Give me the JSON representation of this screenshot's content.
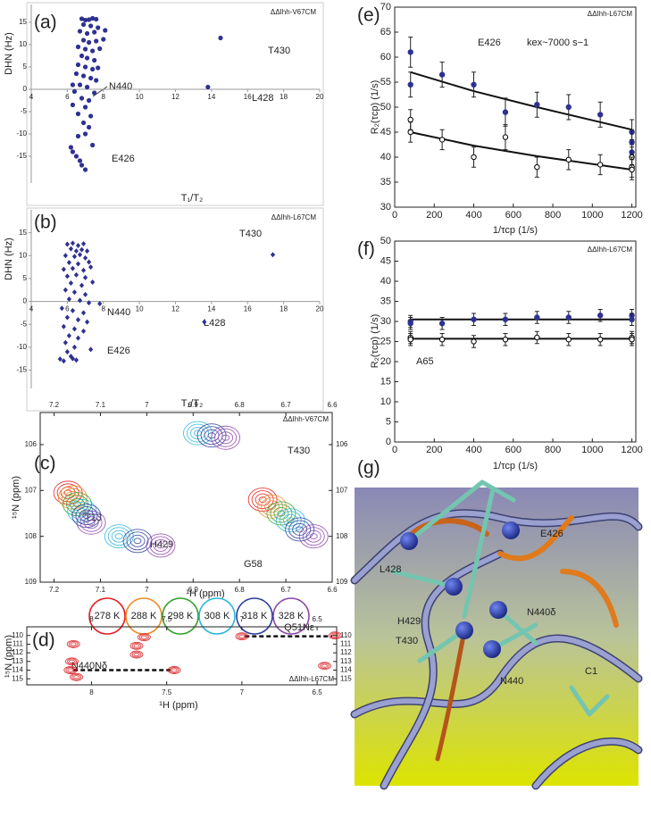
{
  "chart_data": [
    {
      "type": "scatter",
      "label": "(a)",
      "title": "ΔΔIhh-V67CM",
      "x_label": "T₁/T₂",
      "y_label": "DHN (Hz)",
      "marker": "circle",
      "color": "#2e3192",
      "annotations": [
        "T430",
        "L428",
        "N440",
        "E426"
      ],
      "xlim": [
        4,
        20
      ],
      "ylim": [
        -21,
        19
      ],
      "xticks": [
        4,
        6,
        8,
        10,
        12,
        14,
        16,
        18,
        20
      ],
      "yticks": [
        -15,
        -10,
        -5,
        0,
        5,
        10,
        15
      ],
      "x": [
        6.8,
        7.0,
        7.2,
        7.4,
        7.6,
        6.9,
        7.3,
        7.7,
        6.7,
        7.1,
        7.5,
        8.1,
        6.9,
        7.2,
        7.6,
        8.0,
        6.6,
        7.0,
        7.4,
        7.8,
        6.8,
        7.1,
        7.5,
        6.6,
        7.0,
        7.4,
        7.7,
        6.5,
        6.9,
        7.3,
        7.6,
        6.7,
        7.1,
        6.4,
        7.5,
        6.8,
        7.2,
        6.3,
        7.0,
        6.6,
        7.3,
        6.9,
        7.2,
        6.6,
        6.2,
        6.3,
        6.5,
        6.7,
        6.8,
        7.0,
        7.0,
        14.5,
        13.8,
        7.4,
        6.3
      ],
      "values": [
        15.8,
        15.5,
        15.6,
        15.9,
        15.7,
        14.5,
        14.2,
        13.8,
        13,
        12.5,
        12.8,
        13.2,
        11,
        10.5,
        10.8,
        11.2,
        9.5,
        9,
        8.6,
        9.1,
        7.5,
        7,
        6.5,
        5.5,
        5,
        4.5,
        4.8,
        3.5,
        3,
        2.5,
        2,
        1,
        0.5,
        -0.5,
        -0.8,
        -2,
        -2.5,
        -3.5,
        -4,
        -5.5,
        -6,
        -7.5,
        -8.5,
        -10.5,
        -13,
        -14,
        -15,
        -16,
        -17,
        -18,
        -10,
        11.5,
        0.5,
        -12.5,
        1
      ]
    },
    {
      "type": "scatter",
      "label": "(b)",
      "title": "ΔΔIhh-L67CM",
      "x_label": "T₁/T₂",
      "y_label": "DHN (Hz)",
      "marker": "diamond",
      "color": "#2e3192",
      "annotations": [
        "T430",
        "L428",
        "N440",
        "E426"
      ],
      "xlim": [
        4,
        20
      ],
      "ylim": [
        -19,
        20
      ],
      "xticks": [
        4,
        6,
        8,
        10,
        12,
        14,
        16,
        18,
        20
      ],
      "yticks": [
        -15,
        -10,
        -5,
        0,
        5,
        10,
        15
      ],
      "x": [
        6.0,
        6.3,
        6.6,
        6.9,
        6.2,
        6.5,
        6.8,
        7.1,
        5.9,
        6.4,
        6.7,
        7.0,
        6.1,
        6.6,
        7.2,
        5.8,
        6.3,
        6.9,
        7.3,
        6.0,
        6.5,
        7.0,
        6.2,
        6.8,
        7.4,
        5.9,
        6.4,
        7.0,
        6.1,
        6.7,
        7.2,
        5.7,
        6.3,
        6.9,
        6.0,
        6.6,
        7.1,
        5.8,
        6.4,
        6.9,
        6.1,
        6.6,
        5.9,
        6.4,
        6.0,
        6.3,
        6.5,
        6.2,
        5.6,
        5.8,
        17.4,
        13.6,
        7.3,
        7.8
      ],
      "values": [
        12.5,
        12.7,
        12.2,
        12.6,
        11.5,
        11,
        11.3,
        11,
        10,
        9.8,
        10.2,
        9.5,
        8.5,
        8.2,
        8.6,
        7,
        7.2,
        6.8,
        7.5,
        5.5,
        5.8,
        5.2,
        4,
        3.5,
        4.2,
        2.5,
        2,
        1.5,
        0.5,
        0.2,
        -0.3,
        -1.5,
        -2,
        -2.5,
        -3.5,
        -4,
        -4.5,
        -5.5,
        -6,
        -6.5,
        -7.5,
        -8,
        -9,
        -10,
        -11,
        -12.5,
        -12.8,
        -12,
        -12.6,
        -13,
        10.2,
        -4.5,
        -10.5,
        -0.5
      ]
    },
    {
      "type": "contour",
      "label": "(c)",
      "title": "ΔΔIhh-V67CM",
      "x_label": "¹H (ppm)",
      "y_label": "¹⁵N (ppm)",
      "annotations": [
        "T430",
        "T13",
        "H429",
        "G58"
      ],
      "legend": true,
      "xlim": [
        7.23,
        6.6
      ],
      "ylim": [
        109,
        105.3
      ],
      "xticks": [
        7.2,
        7.1,
        7.0,
        6.9,
        6.8,
        6.7,
        6.6
      ],
      "yticks": [
        106,
        107,
        108,
        109
      ],
      "series": [
        {
          "name": "278 K",
          "color": "#e41a1c",
          "x": [
            null,
            7.17,
            null,
            6.75
          ],
          "values": [
            null,
            107.05,
            null,
            107.2
          ]
        },
        {
          "name": "288 K",
          "color": "#f08a24",
          "x": [
            null,
            7.16,
            null,
            6.73
          ],
          "values": [
            null,
            107.15,
            null,
            107.35
          ]
        },
        {
          "name": "298 K",
          "color": "#33a02c",
          "x": [
            null,
            7.15,
            null,
            6.71
          ],
          "values": [
            null,
            107.3,
            null,
            107.5
          ]
        },
        {
          "name": "308 K",
          "color": "#29b6d8",
          "x": [
            6.89,
            7.14,
            7.06,
            6.69
          ],
          "values": [
            105.75,
            107.45,
            108.0,
            107.65
          ]
        },
        {
          "name": "318 K",
          "color": "#2c3e9c",
          "x": [
            6.86,
            7.13,
            7.02,
            6.67
          ],
          "values": [
            105.8,
            107.55,
            108.1,
            107.85
          ]
        },
        {
          "name": "328 K",
          "color": "#8e44ad",
          "x": [
            6.83,
            7.12,
            6.97,
            6.64
          ],
          "values": [
            105.85,
            107.7,
            108.2,
            108.0
          ]
        }
      ]
    },
    {
      "type": "contour",
      "label": "(d)",
      "title": "ΔΔIhh-L67CM",
      "x_label": "¹H (ppm)",
      "y_label": "¹⁵N (ppm)",
      "xlim": [
        8.43,
        6.37
      ],
      "ylim": [
        115.7,
        109
      ],
      "xticks": [
        8.0,
        7.5,
        7.0,
        6.5
      ],
      "yticks": [
        110,
        111,
        112,
        113,
        114,
        115
      ],
      "series": [
        {
          "color": "#d7191c",
          "x": [
            8.12,
            8.1,
            7.65,
            7.7,
            7.7,
            8.14,
            7.45,
            7.0,
            6.38,
            6.45,
            8.13
          ],
          "values": [
            111,
            114.8,
            110.2,
            111.2,
            112.2,
            114,
            114,
            110.1,
            110,
            113.5,
            113
          ]
        }
      ],
      "lines": [
        {
          "label": "Q51Nε",
          "x": [
            6.98,
            6.4
          ],
          "y": 110.1
        },
        {
          "label": "N440Nδ",
          "x": [
            8.12,
            7.47
          ],
          "y": 114
        }
      ]
    },
    {
      "type": "errorbar",
      "label": "(e)",
      "title": "ΔΔIhh-L67CM",
      "x_label": "1/τcp (1/s)",
      "y_label": "R₂(τcp) (1/s)",
      "annotations": [
        "E426",
        "kex~7000 s−1"
      ],
      "xlim": [
        0,
        1220
      ],
      "ylim": [
        30,
        70
      ],
      "xticks": [
        0,
        200,
        400,
        600,
        800,
        1000,
        1200
      ],
      "yticks": [
        30,
        35,
        40,
        45,
        50,
        55,
        60,
        65,
        70
      ],
      "x": [
        80,
        80,
        240,
        400,
        560,
        720,
        880,
        1040,
        1200,
        1200,
        1200
      ],
      "series": [
        {
          "marker": "filled",
          "color": "#2e3192",
          "values": [
            61,
            54.5,
            56.5,
            54.5,
            49,
            50.5,
            50,
            48.5,
            45,
            43,
            41
          ],
          "errors": [
            3,
            2.5,
            2.5,
            2.5,
            2.8,
            2.5,
            2.5,
            2.5,
            2.5,
            2.5,
            2.5
          ]
        },
        {
          "marker": "open",
          "color": "#000000",
          "values": [
            47.5,
            45,
            43.5,
            40,
            44,
            38,
            39.5,
            38.5,
            40,
            38,
            37.5
          ],
          "errors": [
            2,
            2,
            2,
            2,
            2.5,
            2,
            2,
            2,
            2,
            2,
            2
          ]
        }
      ],
      "fits": [
        {
          "x": [
            80,
            400,
            720,
            1200
          ],
          "values": [
            57,
            53.2,
            50,
            45.5
          ]
        },
        {
          "x": [
            80,
            400,
            720,
            1200
          ],
          "values": [
            45,
            42.3,
            40.2,
            37.5
          ]
        }
      ]
    },
    {
      "type": "errorbar",
      "label": "(f)",
      "title": "ΔΔIhh-L67CM",
      "x_label": "1/τcp (1/s)",
      "y_label": "R₂(τcp) (1/s)",
      "annotations": [
        "A65"
      ],
      "xlim": [
        0,
        1220
      ],
      "ylim": [
        0,
        50
      ],
      "xticks": [
        0,
        200,
        400,
        600,
        800,
        1000,
        1200
      ],
      "yticks": [
        0,
        5,
        10,
        15,
        20,
        25,
        30,
        35,
        40,
        45,
        50
      ],
      "x": [
        80,
        80,
        240,
        400,
        560,
        720,
        880,
        1040,
        1200,
        1200
      ],
      "series": [
        {
          "marker": "filled",
          "color": "#2e3192",
          "values": [
            30,
            29.5,
            29.5,
            30.5,
            30.5,
            31,
            31,
            31.5,
            31.5,
            30.5
          ],
          "errors": [
            1.5,
            1.5,
            1.5,
            1.5,
            1.5,
            1.5,
            1.5,
            1.5,
            1.5,
            1.5
          ]
        },
        {
          "marker": "open",
          "color": "#000000",
          "values": [
            26,
            25.5,
            25.5,
            25,
            25.5,
            26,
            25.5,
            25.5,
            26,
            25.5
          ],
          "errors": [
            1.5,
            1.5,
            1.5,
            1.5,
            1.5,
            1.5,
            1.5,
            1.5,
            1.5,
            1.5
          ]
        }
      ],
      "fits": [
        {
          "x": [
            80,
            1200
          ],
          "values": [
            30.5,
            30.5
          ]
        },
        {
          "x": [
            80,
            1200
          ],
          "values": [
            25.7,
            25.7
          ]
        }
      ]
    }
  ],
  "structure_panel": {
    "label": "(g)",
    "labels": [
      "E426",
      "L428",
      "H429",
      "N440δ",
      "T430",
      "N440",
      "C1"
    ]
  }
}
